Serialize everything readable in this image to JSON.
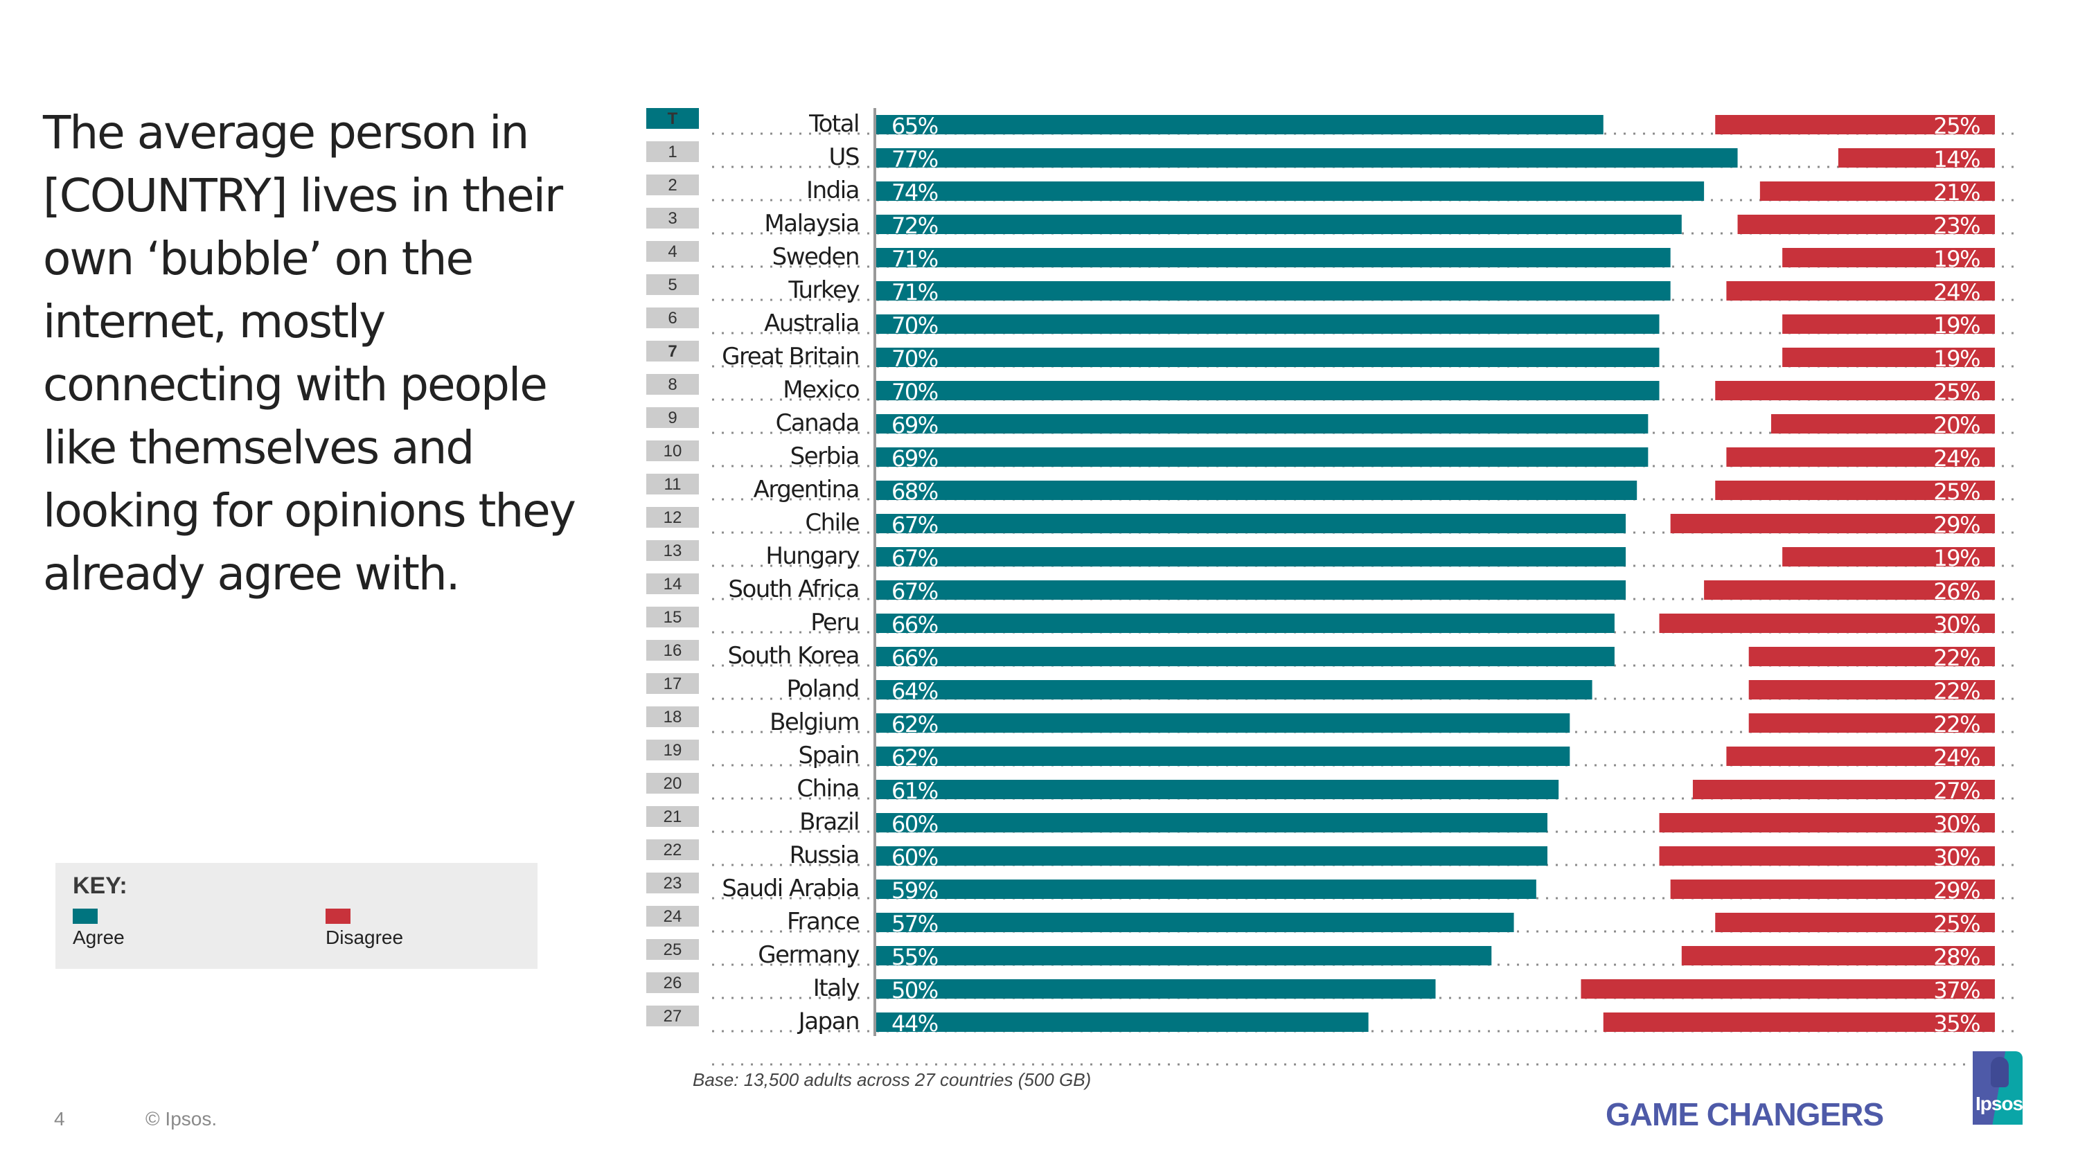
{
  "title": "The average person in [COUNTRY] lives in their own ‘bubble’ on the internet, mostly connecting with people like themselves and looking for opinions they already agree with.",
  "key": {
    "heading": "KEY:",
    "items": [
      {
        "label": "Agree",
        "color": "#00747f"
      },
      {
        "label": "Disagree",
        "color": "#c8323b"
      }
    ]
  },
  "footer": {
    "page_number": "4",
    "copyright": "©  Ipsos.",
    "base_note": "Base: 13,500 adults across 27 countries (500 GB)",
    "brand": "GAME CHANGERS",
    "logo_text": "Ipsos"
  },
  "colors": {
    "agree": "#00747f",
    "disagree": "#c8323b",
    "rank_box": "#cccccc",
    "rank_box_total": "#00747f"
  },
  "chart_data": {
    "type": "bar",
    "orientation": "horizontal",
    "title": "",
    "xlabel": "",
    "ylabel": "",
    "xlim": [
      0,
      100
    ],
    "grid": false,
    "legend": "bottom-left",
    "categories": [
      "Total",
      "US",
      "India",
      "Malaysia",
      "Sweden",
      "Turkey",
      "Australia",
      "Great Britain",
      "Mexico",
      "Canada",
      "Serbia",
      "Argentina",
      "Chile",
      "Hungary",
      "South Africa",
      "Peru",
      "South Korea",
      "Poland",
      "Belgium",
      "Spain",
      "China",
      "Brazil",
      "Russia",
      "Saudi Arabia",
      "France",
      "Germany",
      "Italy",
      "Japan"
    ],
    "ranks": [
      "T",
      "1",
      "2",
      "3",
      "4",
      "5",
      "6",
      "7",
      "8",
      "9",
      "10",
      "11",
      "12",
      "13",
      "14",
      "15",
      "16",
      "17",
      "18",
      "19",
      "20",
      "21",
      "22",
      "23",
      "24",
      "25",
      "26",
      "27"
    ],
    "highlight_rank": "7",
    "series": [
      {
        "name": "Agree",
        "values": [
          65,
          77,
          74,
          72,
          71,
          71,
          70,
          70,
          70,
          69,
          69,
          68,
          67,
          67,
          67,
          66,
          66,
          64,
          62,
          62,
          61,
          60,
          60,
          59,
          57,
          55,
          50,
          44
        ]
      },
      {
        "name": "Disagree",
        "values": [
          25,
          14,
          21,
          23,
          19,
          24,
          19,
          19,
          25,
          20,
          24,
          25,
          29,
          19,
          26,
          30,
          22,
          22,
          22,
          24,
          27,
          30,
          30,
          29,
          25,
          28,
          37,
          35
        ]
      }
    ],
    "labels": {
      "Agree": [
        "65%",
        "77%",
        "74%",
        "72%",
        "71%",
        "71%",
        "70%",
        "70%",
        "70%",
        "69%",
        "69%",
        "68%",
        "67%",
        "67%",
        "67%",
        "66%",
        "66%",
        "64%",
        "62%",
        "62%",
        "61%",
        "60%",
        "60%",
        "59%",
        "57%",
        "55%",
        "50%",
        "44%"
      ],
      "Disagree": [
        "25%",
        "14%",
        "21%",
        "23%",
        "19%",
        "24%",
        "19%",
        "19%",
        "25%",
        "20%",
        "24%",
        "25%",
        "29%",
        "19%",
        "26%",
        "30%",
        "22%",
        "22%",
        "22%",
        "24%",
        "27%",
        "30%",
        "30%",
        "29%",
        "25%",
        "28%",
        "37%",
        "35%"
      ]
    }
  }
}
